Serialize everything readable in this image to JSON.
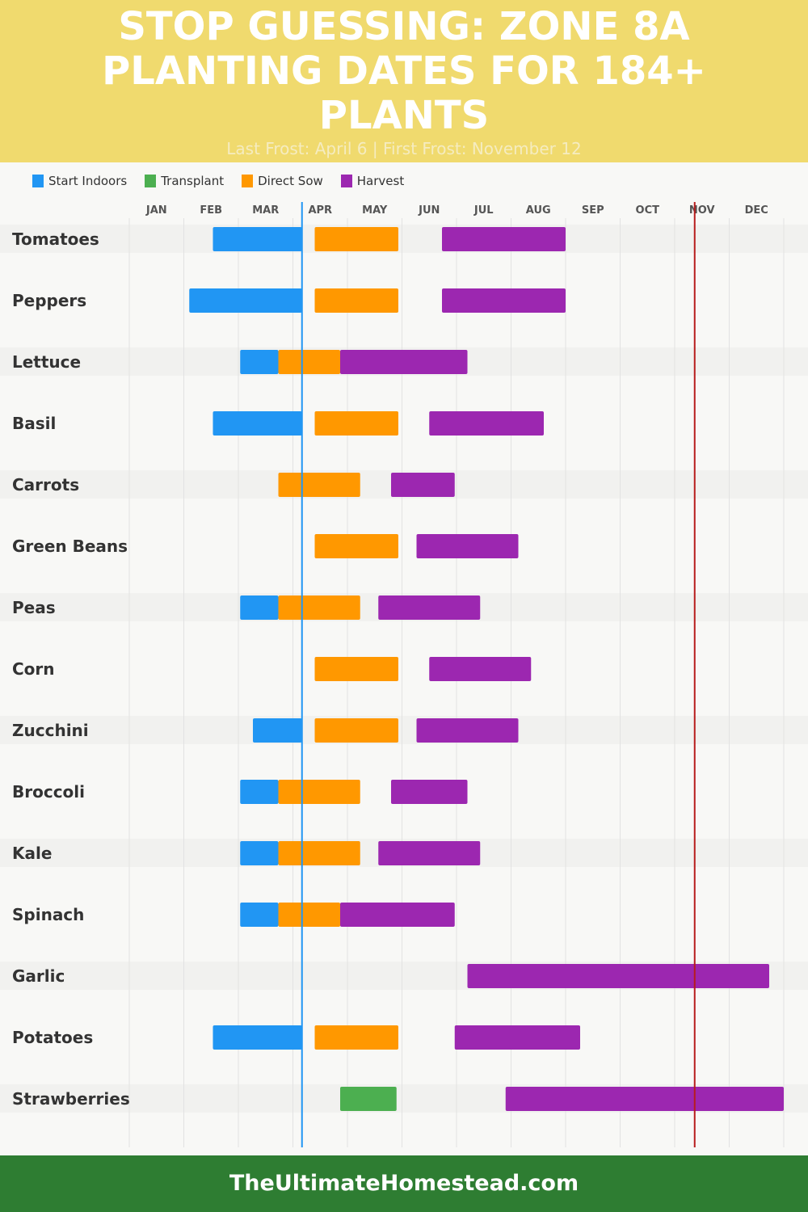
{
  "header": {
    "title": "STOP GUESSING: ZONE 8A PLANTING DATES FOR 184+ PLANTS",
    "subtitle": "Last Frost: April 6 | First Frost: November 12"
  },
  "footer": {
    "site": "TheUltimateHomestead.com"
  },
  "chart_data": {
    "type": "gantt",
    "months": [
      "JAN",
      "FEB",
      "MAR",
      "APR",
      "MAY",
      "JUN",
      "JUL",
      "AUG",
      "SEP",
      "OCT",
      "NOV",
      "DEC"
    ],
    "legend": [
      {
        "name": "Start Indoors",
        "color": "#2196f3"
      },
      {
        "name": "Transplant",
        "color": "#4caf50"
      },
      {
        "name": "Direct Sow",
        "color": "#ff9800"
      },
      {
        "name": "Harvest",
        "color": "#9c27b0"
      }
    ],
    "markers": [
      {
        "label": "Last Frost",
        "date": "Apr 6",
        "color": "#2196f3"
      },
      {
        "label": "First Frost",
        "date": "Nov 12",
        "color": "#b71c1c"
      }
    ],
    "plants": [
      {
        "name": "Tomatoes",
        "bars": [
          [
            "Start Indoors",
            "Feb 17",
            "Apr 6"
          ],
          [
            "Direct Sow",
            "Apr 13",
            "May 29"
          ],
          [
            "Harvest",
            "Jun 23",
            "Sep 1"
          ]
        ]
      },
      {
        "name": "Peppers",
        "bars": [
          [
            "Start Indoors",
            "Feb 4",
            "Apr 6"
          ],
          [
            "Direct Sow",
            "Apr 13",
            "May 29"
          ],
          [
            "Harvest",
            "Jun 23",
            "Sep 1"
          ]
        ]
      },
      {
        "name": "Lettuce",
        "bars": [
          [
            "Start Indoors",
            "Mar 2",
            "Mar 23"
          ],
          [
            "Direct Sow",
            "Mar 23",
            "Apr 27"
          ],
          [
            "Harvest",
            "Apr 27",
            "Jul 7"
          ]
        ]
      },
      {
        "name": "Basil",
        "bars": [
          [
            "Start Indoors",
            "Feb 17",
            "Apr 6"
          ],
          [
            "Direct Sow",
            "Apr 13",
            "May 29"
          ],
          [
            "Harvest",
            "Jun 16",
            "Aug 19"
          ]
        ]
      },
      {
        "name": "Carrots",
        "bars": [
          [
            "Direct Sow",
            "Mar 23",
            "May 8"
          ],
          [
            "Harvest",
            "May 25",
            "Jun 30"
          ]
        ]
      },
      {
        "name": "Green Beans",
        "bars": [
          [
            "Direct Sow",
            "Apr 13",
            "May 29"
          ],
          [
            "Harvest",
            "Jun 9",
            "Aug 5"
          ]
        ]
      },
      {
        "name": "Peas",
        "bars": [
          [
            "Start Indoors",
            "Mar 2",
            "Mar 23"
          ],
          [
            "Direct Sow",
            "Mar 23",
            "May 8"
          ],
          [
            "Harvest",
            "May 18",
            "Jul 14"
          ]
        ]
      },
      {
        "name": "Corn",
        "bars": [
          [
            "Direct Sow",
            "Apr 13",
            "May 29"
          ],
          [
            "Harvest",
            "Jun 16",
            "Aug 12"
          ]
        ]
      },
      {
        "name": "Zucchini",
        "bars": [
          [
            "Start Indoors",
            "Mar 9",
            "Apr 6"
          ],
          [
            "Direct Sow",
            "Apr 13",
            "May 29"
          ],
          [
            "Harvest",
            "Jun 9",
            "Aug 5"
          ]
        ]
      },
      {
        "name": "Broccoli",
        "bars": [
          [
            "Start Indoors",
            "Mar 2",
            "Mar 23"
          ],
          [
            "Direct Sow",
            "Mar 23",
            "May 8"
          ],
          [
            "Harvest",
            "May 25",
            "Jul 7"
          ]
        ]
      },
      {
        "name": "Kale",
        "bars": [
          [
            "Start Indoors",
            "Mar 2",
            "Mar 23"
          ],
          [
            "Direct Sow",
            "Mar 23",
            "May 8"
          ],
          [
            "Harvest",
            "May 18",
            "Jul 14"
          ]
        ]
      },
      {
        "name": "Spinach",
        "bars": [
          [
            "Start Indoors",
            "Mar 2",
            "Mar 23"
          ],
          [
            "Direct Sow",
            "Mar 23",
            "Apr 27"
          ],
          [
            "Harvest",
            "Apr 27",
            "Jun 30"
          ]
        ]
      },
      {
        "name": "Garlic",
        "bars": [
          [
            "Harvest",
            "Jul 7",
            "Dec 23"
          ]
        ]
      },
      {
        "name": "Potatoes",
        "bars": [
          [
            "Start Indoors",
            "Feb 17",
            "Apr 6"
          ],
          [
            "Direct Sow",
            "Apr 13",
            "May 29"
          ],
          [
            "Harvest",
            "Jun 30",
            "Sep 9"
          ]
        ]
      },
      {
        "name": "Strawberries",
        "bars": [
          [
            "Transplant",
            "Apr 27",
            "May 28"
          ],
          [
            "Harvest",
            "Jul 28",
            "Dec 31"
          ]
        ]
      }
    ]
  }
}
